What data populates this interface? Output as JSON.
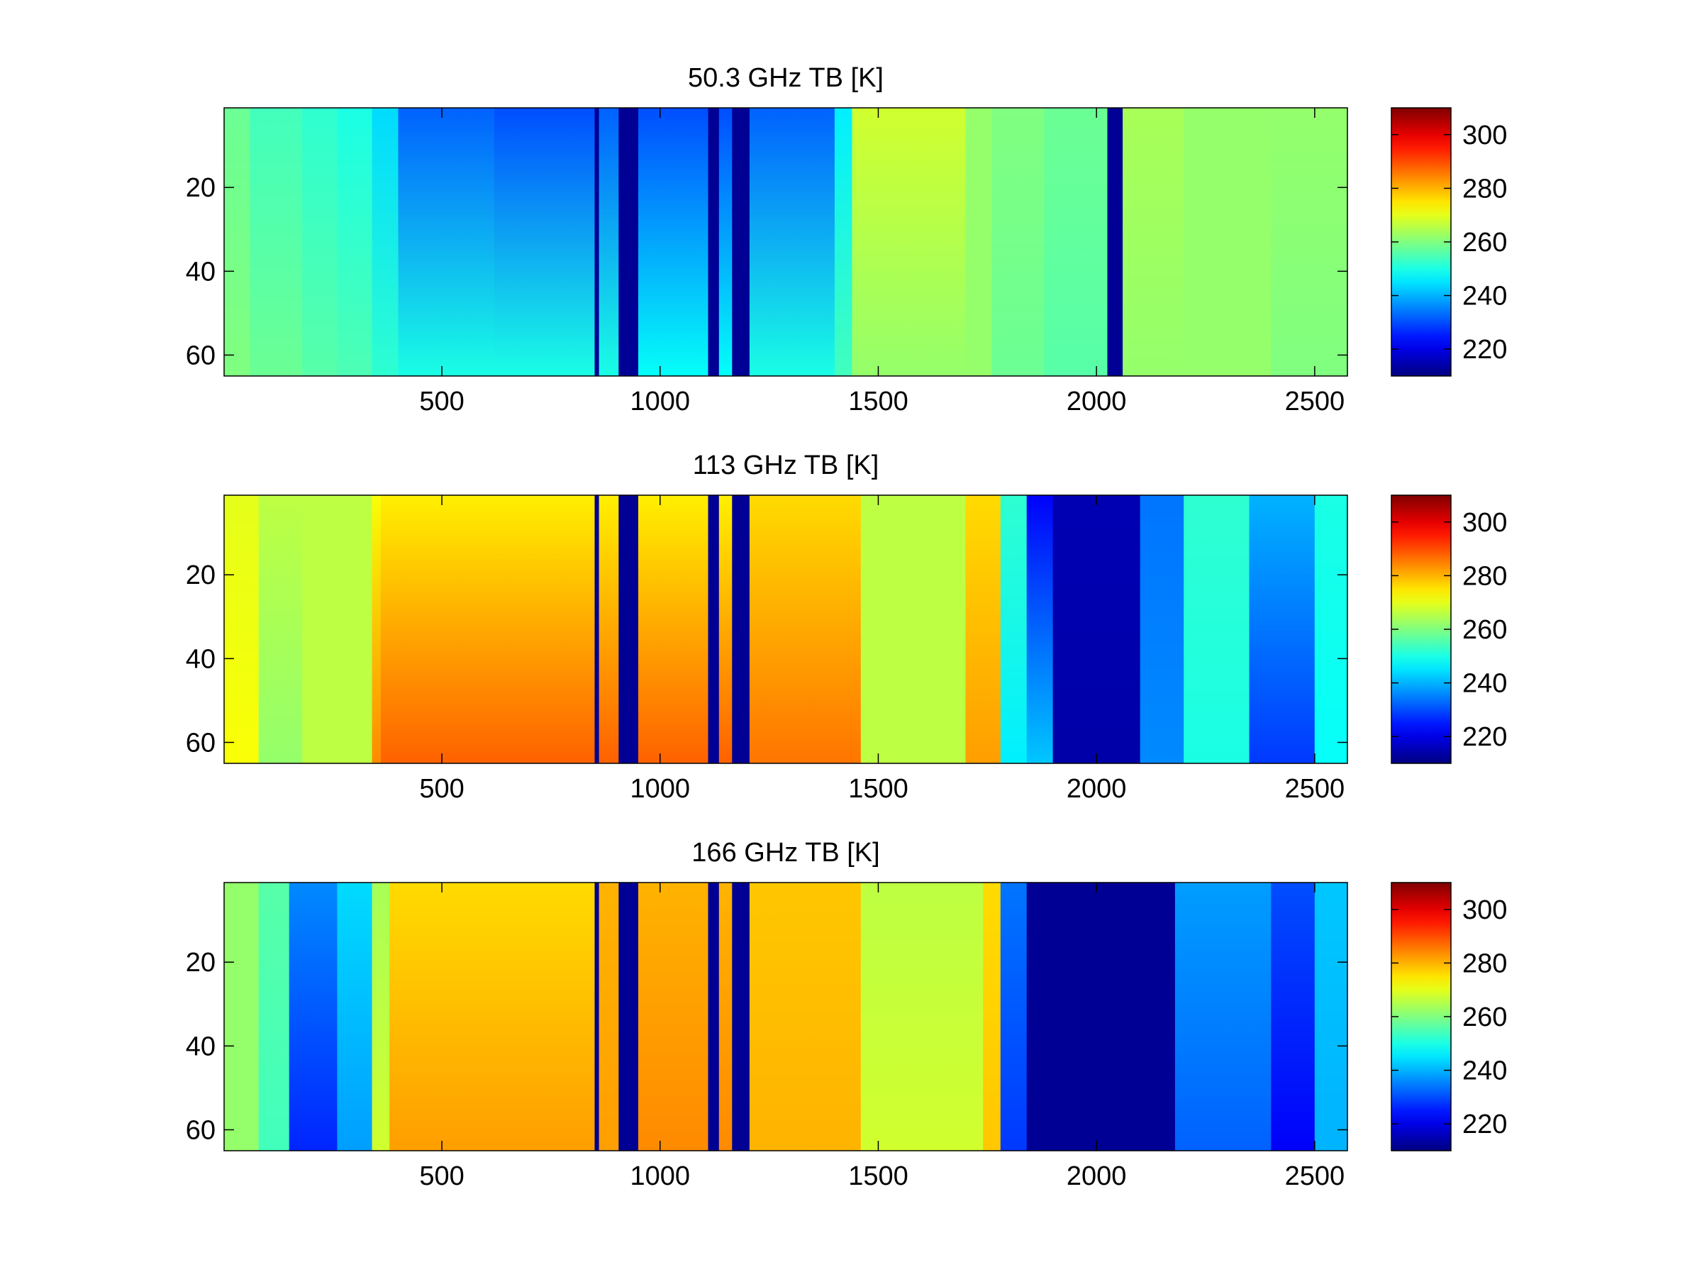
{
  "chart_data": [
    {
      "type": "heatmap",
      "title": "50.3 GHz TB [K]",
      "xlim": [
        1,
        2575
      ],
      "ylim": [
        1,
        65
      ],
      "x_ticks": [
        500,
        1000,
        1500,
        2000,
        2500
      ],
      "y_ticks": [
        20,
        40,
        60
      ],
      "y_reversed": true,
      "colormap": "jet",
      "clim": [
        210,
        310
      ],
      "colorbar_ticks": [
        220,
        240,
        260,
        280,
        300
      ],
      "column_profile": [
        {
          "x": [
            1,
            60
          ],
          "top": 258,
          "bottom": 260
        },
        {
          "x": [
            60,
            180
          ],
          "top": 254,
          "bottom": 258
        },
        {
          "x": [
            180,
            260
          ],
          "top": 252,
          "bottom": 256
        },
        {
          "x": [
            260,
            340
          ],
          "top": 250,
          "bottom": 255
        },
        {
          "x": [
            340,
            400
          ],
          "top": 244,
          "bottom": 252
        },
        {
          "x": [
            400,
            620
          ],
          "top": 232,
          "bottom": 250
        },
        {
          "x": [
            620,
            850
          ],
          "top": 230,
          "bottom": 250
        },
        {
          "x": [
            850,
            860
          ],
          "top": 212,
          "bottom": 212
        },
        {
          "x": [
            860,
            905
          ],
          "top": 232,
          "bottom": 250
        },
        {
          "x": [
            905,
            950
          ],
          "top": 212,
          "bottom": 212
        },
        {
          "x": [
            950,
            1110
          ],
          "top": 230,
          "bottom": 248
        },
        {
          "x": [
            1110,
            1135
          ],
          "top": 212,
          "bottom": 212
        },
        {
          "x": [
            1135,
            1165
          ],
          "top": 230,
          "bottom": 248
        },
        {
          "x": [
            1165,
            1205
          ],
          "top": 212,
          "bottom": 212
        },
        {
          "x": [
            1205,
            1400
          ],
          "top": 232,
          "bottom": 250
        },
        {
          "x": [
            1400,
            1440
          ],
          "top": 246,
          "bottom": 254
        },
        {
          "x": [
            1440,
            1700
          ],
          "top": 268,
          "bottom": 262
        },
        {
          "x": [
            1700,
            1760
          ],
          "top": 262,
          "bottom": 262
        },
        {
          "x": [
            1760,
            1880
          ],
          "top": 260,
          "bottom": 258
        },
        {
          "x": [
            1880,
            2025
          ],
          "top": 258,
          "bottom": 256
        },
        {
          "x": [
            2025,
            2060
          ],
          "top": 212,
          "bottom": 212
        },
        {
          "x": [
            2060,
            2200
          ],
          "top": 264,
          "bottom": 262
        },
        {
          "x": [
            2200,
            2400
          ],
          "top": 262,
          "bottom": 262
        },
        {
          "x": [
            2400,
            2575
          ],
          "top": 262,
          "bottom": 260
        }
      ]
    },
    {
      "type": "heatmap",
      "title": "113 GHz TB [K]",
      "xlim": [
        1,
        2575
      ],
      "ylim": [
        1,
        65
      ],
      "x_ticks": [
        500,
        1000,
        1500,
        2000,
        2500
      ],
      "y_ticks": [
        20,
        40,
        60
      ],
      "y_reversed": true,
      "colormap": "jet",
      "clim": [
        210,
        310
      ],
      "colorbar_ticks": [
        220,
        240,
        260,
        280,
        300
      ],
      "column_profile": [
        {
          "x": [
            1,
            80
          ],
          "top": 270,
          "bottom": 272
        },
        {
          "x": [
            80,
            180
          ],
          "top": 266,
          "bottom": 262
        },
        {
          "x": [
            180,
            340
          ],
          "top": 266,
          "bottom": 266
        },
        {
          "x": [
            340,
            360
          ],
          "top": 272,
          "bottom": 284
        },
        {
          "x": [
            360,
            850
          ],
          "top": 274,
          "bottom": 288
        },
        {
          "x": [
            850,
            860
          ],
          "top": 212,
          "bottom": 212
        },
        {
          "x": [
            860,
            905
          ],
          "top": 274,
          "bottom": 288
        },
        {
          "x": [
            905,
            950
          ],
          "top": 212,
          "bottom": 212
        },
        {
          "x": [
            950,
            1110
          ],
          "top": 274,
          "bottom": 288
        },
        {
          "x": [
            1110,
            1135
          ],
          "top": 212,
          "bottom": 212
        },
        {
          "x": [
            1135,
            1165
          ],
          "top": 274,
          "bottom": 288
        },
        {
          "x": [
            1165,
            1205
          ],
          "top": 212,
          "bottom": 212
        },
        {
          "x": [
            1205,
            1460
          ],
          "top": 276,
          "bottom": 286
        },
        {
          "x": [
            1460,
            1700
          ],
          "top": 266,
          "bottom": 266
        },
        {
          "x": [
            1700,
            1780
          ],
          "top": 276,
          "bottom": 282
        },
        {
          "x": [
            1780,
            1840
          ],
          "top": 252,
          "bottom": 246
        },
        {
          "x": [
            1840,
            1900
          ],
          "top": 222,
          "bottom": 242
        },
        {
          "x": [
            1900,
            2100
          ],
          "top": 215,
          "bottom": 214
        },
        {
          "x": [
            2100,
            2200
          ],
          "top": 234,
          "bottom": 236
        },
        {
          "x": [
            2200,
            2350
          ],
          "top": 252,
          "bottom": 250
        },
        {
          "x": [
            2350,
            2500
          ],
          "top": 240,
          "bottom": 228
        },
        {
          "x": [
            2500,
            2575
          ],
          "top": 250,
          "bottom": 248
        }
      ]
    },
    {
      "type": "heatmap",
      "title": "166 GHz TB [K]",
      "xlim": [
        1,
        2575
      ],
      "ylim": [
        1,
        65
      ],
      "x_ticks": [
        500,
        1000,
        1500,
        2000,
        2500
      ],
      "y_ticks": [
        20,
        40,
        60
      ],
      "y_reversed": true,
      "colormap": "jet",
      "clim": [
        210,
        310
      ],
      "colorbar_ticks": [
        220,
        240,
        260,
        280,
        300
      ],
      "column_profile": [
        {
          "x": [
            1,
            80
          ],
          "top": 262,
          "bottom": 262
        },
        {
          "x": [
            80,
            150
          ],
          "top": 256,
          "bottom": 254
        },
        {
          "x": [
            150,
            260
          ],
          "top": 236,
          "bottom": 226
        },
        {
          "x": [
            260,
            340
          ],
          "top": 244,
          "bottom": 238
        },
        {
          "x": [
            340,
            380
          ],
          "top": 264,
          "bottom": 268
        },
        {
          "x": [
            380,
            850
          ],
          "top": 276,
          "bottom": 282
        },
        {
          "x": [
            850,
            860
          ],
          "top": 212,
          "bottom": 212
        },
        {
          "x": [
            860,
            905
          ],
          "top": 280,
          "bottom": 282
        },
        {
          "x": [
            905,
            950
          ],
          "top": 212,
          "bottom": 212
        },
        {
          "x": [
            950,
            1110
          ],
          "top": 280,
          "bottom": 284
        },
        {
          "x": [
            1110,
            1135
          ],
          "top": 212,
          "bottom": 212
        },
        {
          "x": [
            1135,
            1165
          ],
          "top": 280,
          "bottom": 284
        },
        {
          "x": [
            1165,
            1205
          ],
          "top": 212,
          "bottom": 212
        },
        {
          "x": [
            1205,
            1460
          ],
          "top": 278,
          "bottom": 280
        },
        {
          "x": [
            1460,
            1740
          ],
          "top": 266,
          "bottom": 268
        },
        {
          "x": [
            1740,
            1780
          ],
          "top": 276,
          "bottom": 278
        },
        {
          "x": [
            1780,
            1840
          ],
          "top": 234,
          "bottom": 228
        },
        {
          "x": [
            1840,
            2180
          ],
          "top": 212,
          "bottom": 212
        },
        {
          "x": [
            2180,
            2400
          ],
          "top": 238,
          "bottom": 232
        },
        {
          "x": [
            2400,
            2500
          ],
          "top": 230,
          "bottom": 222
        },
        {
          "x": [
            2500,
            2575
          ],
          "top": 242,
          "bottom": 240
        }
      ]
    }
  ]
}
